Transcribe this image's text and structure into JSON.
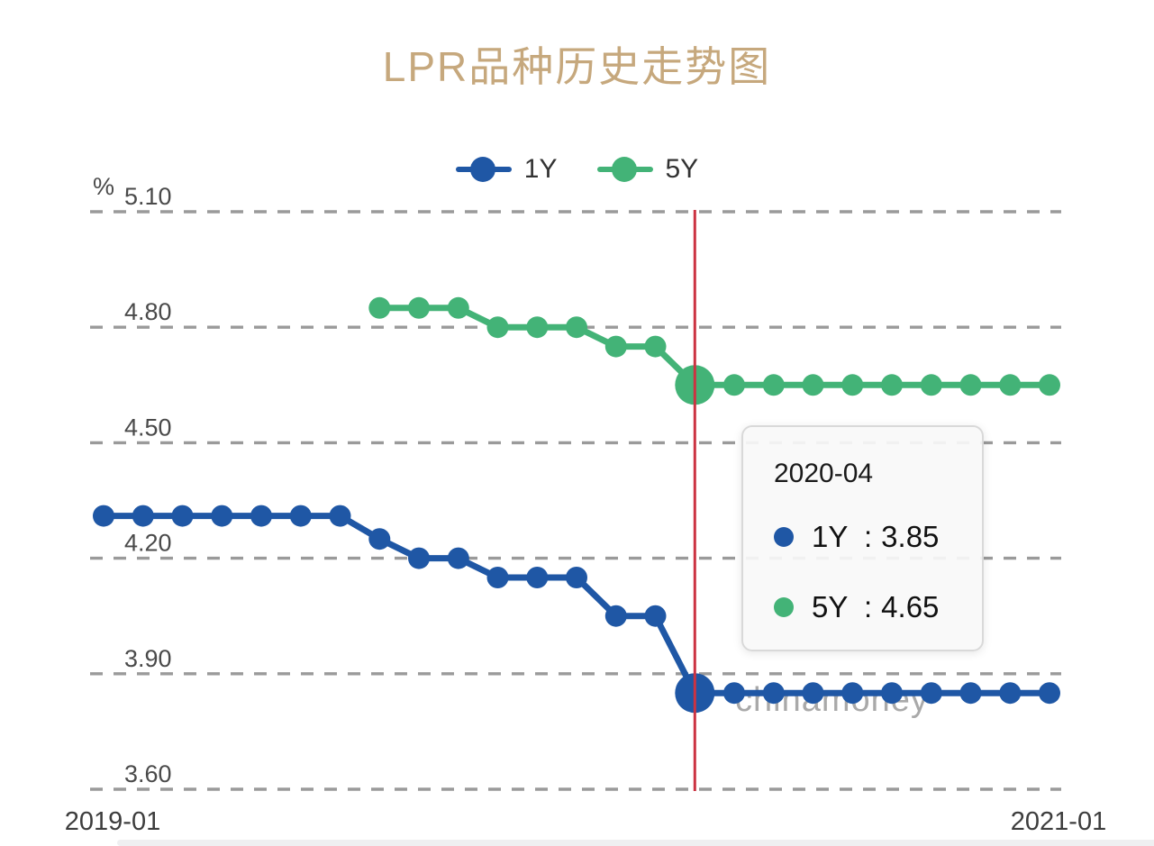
{
  "title": "LPR品种历史走势图",
  "legend": {
    "items": [
      {
        "label": "1Y",
        "color": "#1f57a5"
      },
      {
        "label": "5Y",
        "color": "#43b377"
      }
    ]
  },
  "watermark": "chinamoney",
  "tooltip": {
    "title": "2020-04",
    "separator": ":",
    "rows": [
      {
        "label": "1Y",
        "value": "3.85",
        "color": "#1f57a5"
      },
      {
        "label": "5Y",
        "value": "4.65",
        "color": "#43b377"
      }
    ]
  },
  "axis": {
    "unit": "%",
    "y_tick_labels": [
      "5.10",
      "4.80",
      "4.50",
      "4.20",
      "3.90",
      "3.60"
    ],
    "x_labels": [
      "2019-01",
      "2021-01"
    ]
  },
  "colors": {
    "title": "#c6a87d",
    "series_1y": "#1f57a5",
    "series_5y": "#43b377",
    "marker_line": "#cc3342",
    "grid": "#9a9a9a",
    "axis_text": "#4a4a4a",
    "x_label_text": "#3d3d3d",
    "watermark": "#9b9b9b"
  },
  "chart_data": {
    "type": "line",
    "title": "LPR品种历史走势图",
    "xlabel": "",
    "ylabel": "%",
    "ylim": [
      3.6,
      5.1
    ],
    "y_ticks": [
      5.1,
      4.8,
      4.5,
      4.2,
      3.9,
      3.6
    ],
    "grid": "horizontal dashed",
    "legend_position": "top-center",
    "highlight_x": "2020-04",
    "x": [
      "2019-01",
      "2019-02",
      "2019-03",
      "2019-04",
      "2019-05",
      "2019-06",
      "2019-07",
      "2019-08",
      "2019-09",
      "2019-10",
      "2019-11",
      "2019-12",
      "2020-01",
      "2020-02",
      "2020-03",
      "2020-04",
      "2020-05",
      "2020-06",
      "2020-07",
      "2020-08",
      "2020-09",
      "2020-10",
      "2020-11",
      "2020-12",
      "2021-01"
    ],
    "series": [
      {
        "name": "1Y",
        "color": "#1f57a5",
        "values": [
          4.31,
          4.31,
          4.31,
          4.31,
          4.31,
          4.31,
          4.31,
          4.25,
          4.2,
          4.2,
          4.15,
          4.15,
          4.15,
          4.05,
          4.05,
          3.85,
          3.85,
          3.85,
          3.85,
          3.85,
          3.85,
          3.85,
          3.85,
          3.85,
          3.85
        ]
      },
      {
        "name": "5Y",
        "color": "#43b377",
        "values": [
          null,
          null,
          null,
          null,
          null,
          null,
          null,
          4.85,
          4.85,
          4.85,
          4.8,
          4.8,
          4.8,
          4.75,
          4.75,
          4.65,
          4.65,
          4.65,
          4.65,
          4.65,
          4.65,
          4.65,
          4.65,
          4.65,
          4.65
        ]
      }
    ]
  }
}
